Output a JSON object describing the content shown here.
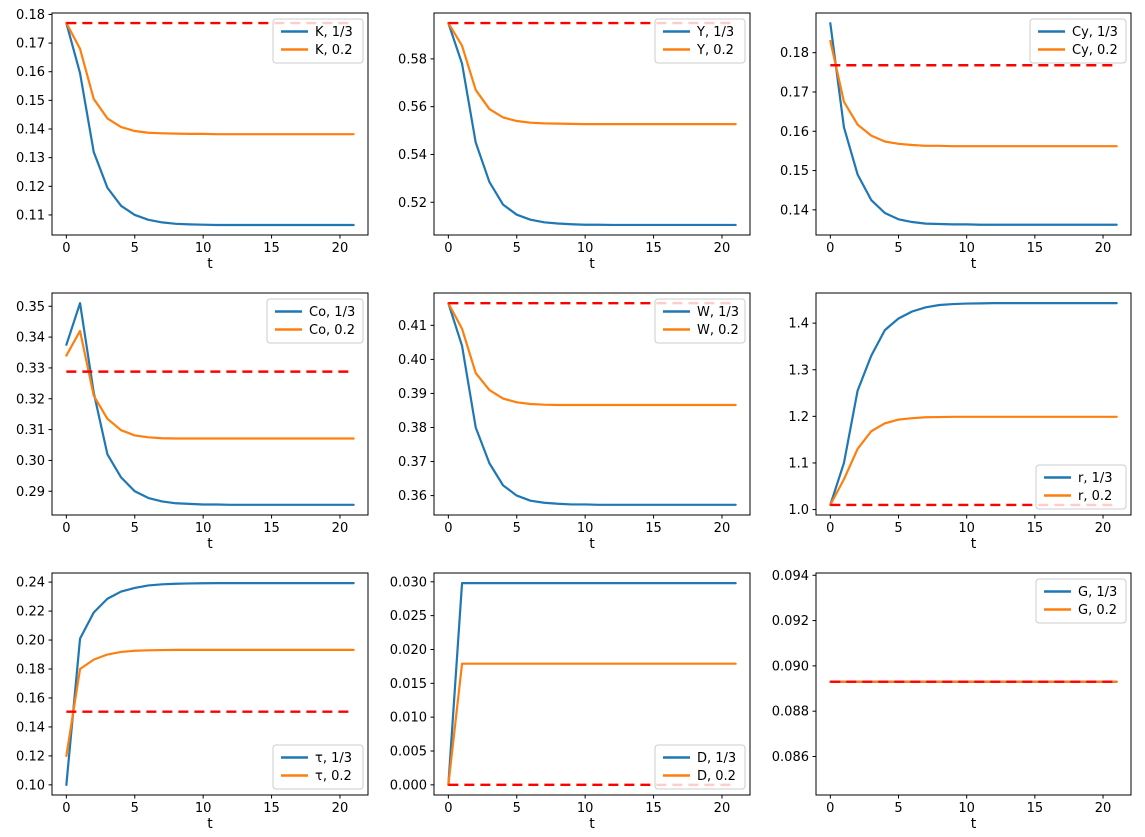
{
  "figure": {
    "background": "#ffffff",
    "x_label": "t",
    "t_values": [
      0,
      1,
      2,
      3,
      4,
      5,
      6,
      7,
      8,
      9,
      10,
      11,
      12,
      13,
      14,
      15,
      16,
      17,
      18,
      19,
      20,
      21
    ],
    "x_ticks": [
      0,
      5,
      10,
      15,
      20
    ],
    "x_tick_labels": [
      "0",
      "5",
      "10",
      "15",
      "20"
    ],
    "x_lim": [
      -1.05,
      22.05
    ],
    "colors": {
      "series_blue": "#1f77b4",
      "series_orange": "#ff7f0e",
      "reference_red": "#ff0000",
      "axes": "#000000",
      "text": "#000000",
      "legend_border": "#cccccc",
      "legend_fill": "rgba(255,255,255,0.8)"
    }
  },
  "chart_data": [
    {
      "type": "line",
      "name": "K",
      "x_label": "t",
      "y_lim": [
        0.103,
        0.1805
      ],
      "y_ticks": [
        0.11,
        0.12,
        0.13,
        0.14,
        0.15,
        0.16,
        0.17,
        0.18
      ],
      "y_tick_labels": [
        "0.11",
        "0.12",
        "0.13",
        "0.14",
        "0.15",
        "0.16",
        "0.17",
        "0.18"
      ],
      "legend_position": "upper-right",
      "series": [
        {
          "name": "K, 1/3",
          "color": "#1f77b4",
          "values": [
            0.177,
            0.1595,
            0.132,
            0.1195,
            0.1132,
            0.11,
            0.1083,
            0.1074,
            0.1069,
            0.1067,
            0.1066,
            0.1065,
            0.1065,
            0.1065,
            0.1065,
            0.1065,
            0.1065,
            0.1065,
            0.1065,
            0.1065,
            0.1065,
            0.1065
          ]
        },
        {
          "name": "K, 0.2",
          "color": "#ff7f0e",
          "values": [
            0.177,
            0.168,
            0.1505,
            0.1437,
            0.1407,
            0.1393,
            0.1387,
            0.1385,
            0.1384,
            0.1383,
            0.1383,
            0.1382,
            0.1382,
            0.1382,
            0.1382,
            0.1382,
            0.1382,
            0.1382,
            0.1382,
            0.1382,
            0.1382,
            0.1382
          ]
        }
      ],
      "reference_line": {
        "value": 0.177,
        "color": "#ff0000",
        "linestyle": "dashed"
      }
    },
    {
      "type": "line",
      "name": "Y",
      "x_label": "t",
      "y_lim": [
        0.5063,
        0.5992
      ],
      "y_ticks": [
        0.52,
        0.54,
        0.56,
        0.58
      ],
      "y_tick_labels": [
        "0.52",
        "0.54",
        "0.56",
        "0.58"
      ],
      "legend_position": "upper-right",
      "series": [
        {
          "name": "Y, 1/3",
          "color": "#1f77b4",
          "values": [
            0.595,
            0.578,
            0.545,
            0.5285,
            0.519,
            0.5148,
            0.5127,
            0.5116,
            0.5111,
            0.5108,
            0.5106,
            0.5106,
            0.5105,
            0.5105,
            0.5105,
            0.5105,
            0.5105,
            0.5105,
            0.5105,
            0.5105,
            0.5105,
            0.5105
          ]
        },
        {
          "name": "Y, 0.2",
          "color": "#ff7f0e",
          "values": [
            0.595,
            0.5855,
            0.567,
            0.559,
            0.5555,
            0.554,
            0.5533,
            0.553,
            0.5529,
            0.5528,
            0.5527,
            0.5527,
            0.5527,
            0.5527,
            0.5527,
            0.5527,
            0.5527,
            0.5527,
            0.5527,
            0.5527,
            0.5527,
            0.5527
          ]
        }
      ],
      "reference_line": {
        "value": 0.595,
        "color": "#ff0000",
        "linestyle": "dashed"
      }
    },
    {
      "type": "line",
      "name": "Cy",
      "x_label": "t",
      "y_lim": [
        0.1336,
        0.1901
      ],
      "y_ticks": [
        0.14,
        0.15,
        0.16,
        0.17,
        0.18
      ],
      "y_tick_labels": [
        "0.14",
        "0.15",
        "0.16",
        "0.17",
        "0.18"
      ],
      "legend_position": "upper-right",
      "series": [
        {
          "name": "Cy, 1/3",
          "color": "#1f77b4",
          "values": [
            0.1875,
            0.161,
            0.149,
            0.1425,
            0.1392,
            0.1376,
            0.1369,
            0.1365,
            0.1364,
            0.1363,
            0.1363,
            0.1362,
            0.1362,
            0.1362,
            0.1362,
            0.1362,
            0.1362,
            0.1362,
            0.1362,
            0.1362,
            0.1362,
            0.1362
          ]
        },
        {
          "name": "Cy, 0.2",
          "color": "#ff7f0e",
          "values": [
            0.183,
            0.1675,
            0.1617,
            0.1589,
            0.1574,
            0.1568,
            0.1565,
            0.1563,
            0.1563,
            0.1562,
            0.1562,
            0.1562,
            0.1562,
            0.1562,
            0.1562,
            0.1562,
            0.1562,
            0.1562,
            0.1562,
            0.1562,
            0.1562,
            0.1562
          ]
        }
      ],
      "reference_line": {
        "value": 0.1768,
        "color": "#ff0000",
        "linestyle": "dashed"
      }
    },
    {
      "type": "line",
      "name": "Co",
      "x_label": "t",
      "y_lim": [
        0.2823,
        0.3543
      ],
      "y_ticks": [
        0.29,
        0.3,
        0.31,
        0.32,
        0.33,
        0.34,
        0.35
      ],
      "y_tick_labels": [
        "0.29",
        "0.30",
        "0.31",
        "0.32",
        "0.33",
        "0.34",
        "0.35"
      ],
      "legend_position": "upper-right",
      "series": [
        {
          "name": "Co, 1/3",
          "color": "#1f77b4",
          "values": [
            0.3375,
            0.351,
            0.322,
            0.302,
            0.2945,
            0.29,
            0.2878,
            0.2867,
            0.2861,
            0.2859,
            0.2857,
            0.2857,
            0.2856,
            0.2856,
            0.2856,
            0.2856,
            0.2856,
            0.2856,
            0.2856,
            0.2856,
            0.2856,
            0.2856
          ]
        },
        {
          "name": "Co, 0.2",
          "color": "#ff7f0e",
          "values": [
            0.334,
            0.342,
            0.321,
            0.3135,
            0.3098,
            0.3081,
            0.3075,
            0.3072,
            0.3071,
            0.3071,
            0.3071,
            0.3071,
            0.3071,
            0.3071,
            0.3071,
            0.3071,
            0.3071,
            0.3071,
            0.3071,
            0.3071,
            0.3071,
            0.3071
          ]
        }
      ],
      "reference_line": {
        "value": 0.3288,
        "color": "#ff0000",
        "linestyle": "dashed"
      }
    },
    {
      "type": "line",
      "name": "W",
      "x_label": "t",
      "y_lim": [
        0.3543,
        0.4195
      ],
      "y_ticks": [
        0.36,
        0.37,
        0.38,
        0.39,
        0.4,
        0.41
      ],
      "y_tick_labels": [
        "0.36",
        "0.37",
        "0.38",
        "0.39",
        "0.40",
        "0.41"
      ],
      "legend_position": "upper-right",
      "series": [
        {
          "name": "W, 1/3",
          "color": "#1f77b4",
          "values": [
            0.4165,
            0.404,
            0.38,
            0.3695,
            0.363,
            0.36,
            0.3585,
            0.3579,
            0.3576,
            0.3574,
            0.3574,
            0.3573,
            0.3573,
            0.3573,
            0.3573,
            0.3573,
            0.3573,
            0.3573,
            0.3573,
            0.3573,
            0.3573,
            0.3573
          ]
        },
        {
          "name": "W, 0.2",
          "color": "#ff7f0e",
          "values": [
            0.4165,
            0.409,
            0.396,
            0.391,
            0.3885,
            0.3874,
            0.3869,
            0.3867,
            0.3866,
            0.3866,
            0.3866,
            0.3866,
            0.3866,
            0.3866,
            0.3866,
            0.3866,
            0.3866,
            0.3866,
            0.3866,
            0.3866,
            0.3866,
            0.3866
          ]
        }
      ],
      "reference_line": {
        "value": 0.4165,
        "color": "#ff0000",
        "linestyle": "dashed"
      }
    },
    {
      "type": "line",
      "name": "r",
      "x_label": "t",
      "y_lim": [
        0.9883,
        1.4647
      ],
      "y_ticks": [
        1.0,
        1.1,
        1.2,
        1.3,
        1.4
      ],
      "y_tick_labels": [
        "1.0",
        "1.1",
        "1.2",
        "1.3",
        "1.4"
      ],
      "legend_position": "lower-right",
      "series": [
        {
          "name": "r, 1/3",
          "color": "#1f77b4",
          "values": [
            1.01,
            1.1,
            1.255,
            1.33,
            1.385,
            1.41,
            1.425,
            1.434,
            1.439,
            1.441,
            1.442,
            1.4425,
            1.443,
            1.443,
            1.443,
            1.443,
            1.443,
            1.443,
            1.443,
            1.443,
            1.443,
            1.443
          ]
        },
        {
          "name": "r, 0.2",
          "color": "#ff7f0e",
          "values": [
            1.01,
            1.065,
            1.13,
            1.168,
            1.185,
            1.193,
            1.196,
            1.198,
            1.1985,
            1.199,
            1.199,
            1.199,
            1.199,
            1.199,
            1.199,
            1.199,
            1.199,
            1.199,
            1.199,
            1.199,
            1.199,
            1.199
          ]
        }
      ],
      "reference_line": {
        "value": 1.01,
        "color": "#ff0000",
        "linestyle": "dashed"
      }
    },
    {
      "type": "line",
      "name": "τ",
      "x_label": "t",
      "y_lim": [
        0.093,
        0.2463
      ],
      "y_ticks": [
        0.1,
        0.12,
        0.14,
        0.16,
        0.18,
        0.2,
        0.22,
        0.24
      ],
      "y_tick_labels": [
        "0.10",
        "0.12",
        "0.14",
        "0.16",
        "0.18",
        "0.20",
        "0.22",
        "0.24"
      ],
      "legend_position": "lower-right",
      "series": [
        {
          "name": "τ, 1/3",
          "color": "#1f77b4",
          "values": [
            0.1,
            0.201,
            0.219,
            0.2285,
            0.2335,
            0.236,
            0.2377,
            0.2385,
            0.2389,
            0.2391,
            0.2392,
            0.2393,
            0.2393,
            0.2393,
            0.2393,
            0.2393,
            0.2393,
            0.2393,
            0.2393,
            0.2393,
            0.2393,
            0.2393
          ]
        },
        {
          "name": "τ, 0.2",
          "color": "#ff7f0e",
          "values": [
            0.12,
            0.18,
            0.1865,
            0.19,
            0.1918,
            0.1926,
            0.1929,
            0.1931,
            0.1932,
            0.1932,
            0.1932,
            0.1932,
            0.1932,
            0.1932,
            0.1932,
            0.1932,
            0.1932,
            0.1932,
            0.1932,
            0.1932,
            0.1932,
            0.1932
          ]
        }
      ],
      "reference_line": {
        "value": 0.1505,
        "color": "#ff0000",
        "linestyle": "dashed"
      }
    },
    {
      "type": "line",
      "name": "D",
      "x_label": "t",
      "y_lim": [
        -0.0015,
        0.0313
      ],
      "y_ticks": [
        0.0,
        0.005,
        0.01,
        0.015,
        0.02,
        0.025,
        0.03
      ],
      "y_tick_labels": [
        "0.000",
        "0.005",
        "0.010",
        "0.015",
        "0.020",
        "0.025",
        "0.030"
      ],
      "legend_position": "lower-right",
      "series": [
        {
          "name": "D, 1/3",
          "color": "#1f77b4",
          "values": [
            0.0,
            0.0298,
            0.0298,
            0.0298,
            0.0298,
            0.0298,
            0.0298,
            0.0298,
            0.0298,
            0.0298,
            0.0298,
            0.0298,
            0.0298,
            0.0298,
            0.0298,
            0.0298,
            0.0298,
            0.0298,
            0.0298,
            0.0298,
            0.0298,
            0.0298
          ]
        },
        {
          "name": "D, 0.2",
          "color": "#ff7f0e",
          "values": [
            0.0,
            0.0179,
            0.0179,
            0.0179,
            0.0179,
            0.0179,
            0.0179,
            0.0179,
            0.0179,
            0.0179,
            0.0179,
            0.0179,
            0.0179,
            0.0179,
            0.0179,
            0.0179,
            0.0179,
            0.0179,
            0.0179,
            0.0179,
            0.0179,
            0.0179
          ]
        }
      ],
      "reference_line": {
        "value": 0.0,
        "color": "#ff0000",
        "linestyle": "dashed"
      }
    },
    {
      "type": "line",
      "name": "G",
      "x_label": "t",
      "y_lim": [
        0.0843,
        0.0941
      ],
      "y_ticks": [
        0.086,
        0.088,
        0.09,
        0.092,
        0.094
      ],
      "y_tick_labels": [
        "0.086",
        "0.088",
        "0.090",
        "0.092",
        "0.094"
      ],
      "legend_position": "upper-right",
      "series": [
        {
          "name": "G, 1/3",
          "color": "#1f77b4",
          "values": [
            0.0893,
            0.0893,
            0.0893,
            0.0893,
            0.0893,
            0.0893,
            0.0893,
            0.0893,
            0.0893,
            0.0893,
            0.0893,
            0.0893,
            0.0893,
            0.0893,
            0.0893,
            0.0893,
            0.0893,
            0.0893,
            0.0893,
            0.0893,
            0.0893,
            0.0893
          ]
        },
        {
          "name": "G, 0.2",
          "color": "#ff7f0e",
          "values": [
            0.0893,
            0.0893,
            0.0893,
            0.0893,
            0.0893,
            0.0893,
            0.0893,
            0.0893,
            0.0893,
            0.0893,
            0.0893,
            0.0893,
            0.0893,
            0.0893,
            0.0893,
            0.0893,
            0.0893,
            0.0893,
            0.0893,
            0.0893,
            0.0893,
            0.0893
          ]
        }
      ],
      "reference_line": {
        "value": 0.0893,
        "color": "#ff0000",
        "linestyle": "dashed"
      }
    }
  ]
}
